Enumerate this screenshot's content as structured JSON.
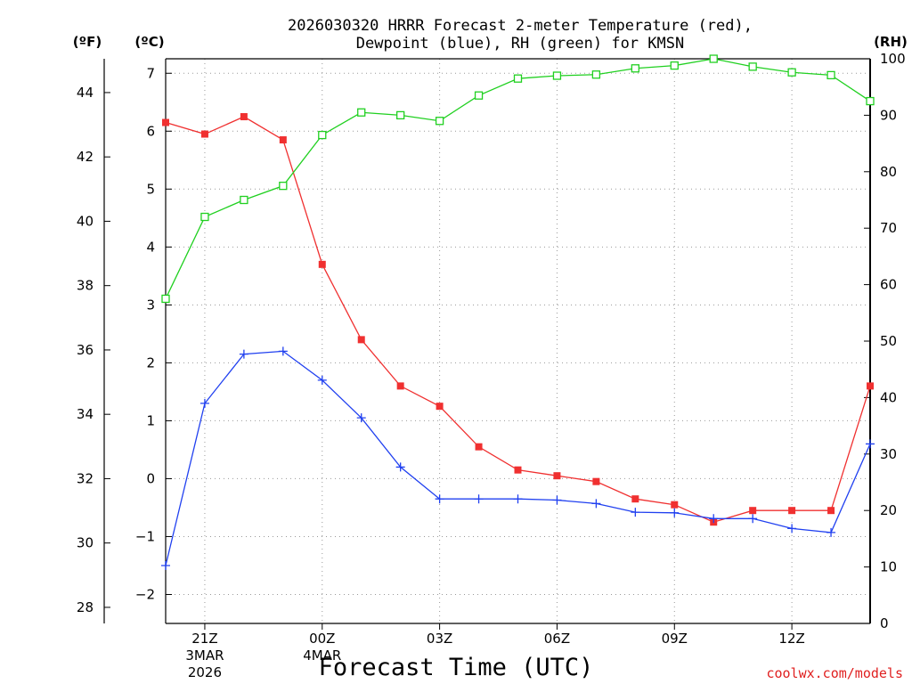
{
  "chart_data": {
    "type": "line",
    "title_line1": "2026030320 HRRR Forecast 2-meter Temperature (red),",
    "title_line2": "Dewpoint (blue), RH (green) for KMSN",
    "xlabel": "Forecast Time (UTC)",
    "credit": "coolwx.com/models",
    "units": {
      "fahrenheit": "(ºF)",
      "celsius": "(ºC)",
      "rh": "(RH)"
    },
    "x_hours": [
      0,
      1,
      2,
      3,
      4,
      5,
      6,
      7,
      8,
      9,
      10,
      11,
      12,
      13,
      14,
      15,
      16,
      17,
      18
    ],
    "x_ticks": [
      {
        "hour": 1,
        "label": "21Z",
        "date": "3MAR",
        "year": "2026"
      },
      {
        "hour": 4,
        "label": "00Z",
        "date": "4MAR",
        "year": ""
      },
      {
        "hour": 7,
        "label": "03Z",
        "date": "",
        "year": ""
      },
      {
        "hour": 10,
        "label": "06Z",
        "date": "",
        "year": ""
      },
      {
        "hour": 13,
        "label": "09Z",
        "date": "",
        "year": ""
      },
      {
        "hour": 16,
        "label": "12Z",
        "date": "",
        "year": ""
      }
    ],
    "ylim_c": [
      -2.5,
      7.25
    ],
    "celsius_ticks": [
      -2,
      -1,
      0,
      1,
      2,
      3,
      4,
      5,
      6,
      7
    ],
    "fahrenheit_ticks": [
      28,
      30,
      32,
      34,
      36,
      38,
      40,
      42,
      44
    ],
    "rh_ticks": [
      0,
      10,
      20,
      30,
      40,
      50,
      60,
      70,
      80,
      90,
      100
    ],
    "ylim_rh": [
      0,
      100
    ],
    "series": [
      {
        "name": "Temperature",
        "color": "#f03030",
        "axis": "celsius",
        "marker": "square-filled",
        "values": [
          6.15,
          5.95,
          6.25,
          5.85,
          3.7,
          2.4,
          1.6,
          1.25,
          0.55,
          0.15,
          0.05,
          -0.05,
          -0.35,
          -0.45,
          -0.75,
          -0.55,
          -0.55,
          -0.55,
          1.6
        ]
      },
      {
        "name": "Dewpoint",
        "color": "#2040f0",
        "axis": "celsius",
        "marker": "plus",
        "values": [
          -1.5,
          1.3,
          2.15,
          2.2,
          1.7,
          1.05,
          0.2,
          -0.35,
          -0.35,
          -0.35,
          -0.37,
          -0.43,
          -0.58,
          -0.59,
          -0.69,
          -0.69,
          -0.86,
          -0.93,
          0.6
        ]
      },
      {
        "name": "RH",
        "color": "#20d020",
        "axis": "rh",
        "marker": "square-open",
        "values": [
          57.5,
          72,
          75,
          77.5,
          86.5,
          90.5,
          90,
          89,
          93.5,
          96.5,
          97,
          97.2,
          98.3,
          98.8,
          100,
          98.6,
          97.6,
          97.1,
          92.5
        ]
      }
    ]
  }
}
